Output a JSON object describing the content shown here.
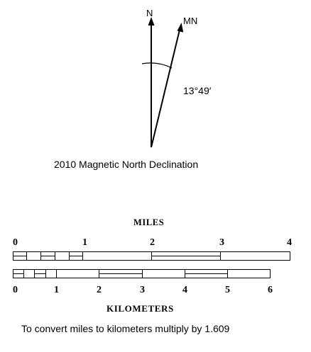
{
  "compass": {
    "true_north_label": "N",
    "magnetic_north_label": "MN",
    "declination": "13°49′",
    "caption": "2010 Magnetic North Declination"
  },
  "scale": {
    "miles_title": "MILES",
    "miles_ticks": [
      "0",
      "1",
      "2",
      "3",
      "4"
    ],
    "km_ticks": [
      "0",
      "1",
      "2",
      "3",
      "4",
      "5",
      "6"
    ],
    "km_title": "KILOMETERS",
    "note": "To convert miles to kilometers multiply by 1.609"
  }
}
